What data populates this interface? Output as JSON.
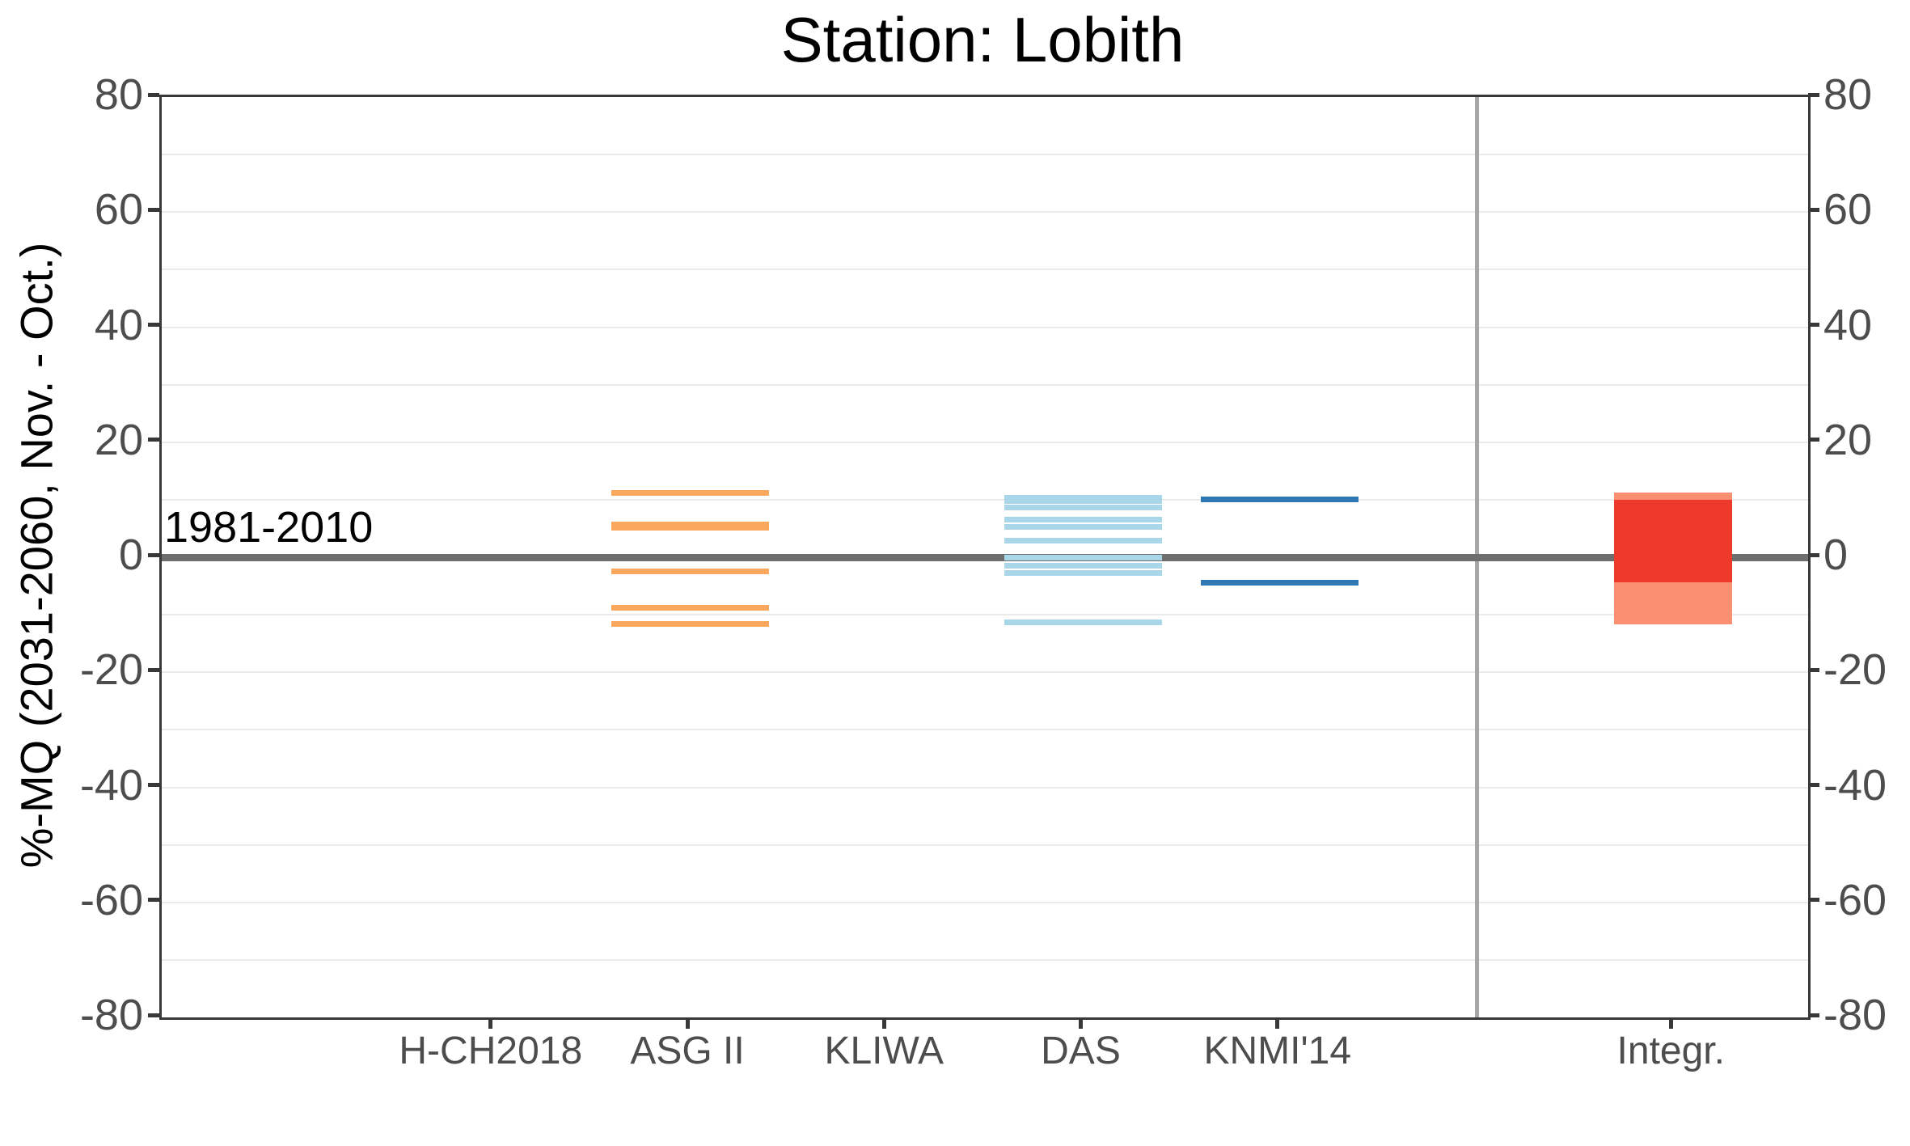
{
  "chart_data": {
    "type": "interval",
    "title": "Station: Lobith",
    "ylabel": "%-MQ (2031-2060, Nov. - Oct.)",
    "ylim": [
      -80,
      80
    ],
    "yticks": [
      80,
      60,
      40,
      20,
      0,
      -20,
      -40,
      -60,
      -80
    ],
    "grid_step": 10,
    "grid_on": true,
    "legend_position": "none",
    "baseline": {
      "value": 0,
      "label": "1981-2010",
      "color": "#6e6e6e"
    },
    "categories": [
      "H-CH2018",
      "ASG II",
      "KLIWA",
      "DAS",
      "KNMI'14",
      "Integr."
    ],
    "series": [
      {
        "name": "H-CH2018",
        "type": "lines",
        "color": "#fba75d",
        "values": []
      },
      {
        "name": "ASG II",
        "type": "lines",
        "color": "#fba75d",
        "values": [
          11.2,
          5.4,
          -2.4,
          -8.8,
          -11.6
        ],
        "thick_values": [
          5.4
        ]
      },
      {
        "name": "KLIWA",
        "type": "lines",
        "color": "#a9d6e8",
        "values": []
      },
      {
        "name": "DAS",
        "type": "lines",
        "color": "#a9d6e8",
        "values": [
          10.1,
          8.6,
          6.6,
          5.3,
          2.9,
          0.0,
          -1.5,
          -2.8,
          -11.3
        ],
        "thick_values": [
          10.1
        ]
      },
      {
        "name": "KNMI'14",
        "type": "lines",
        "color": "#2e78b6",
        "values": [
          10.1,
          -4.4
        ]
      },
      {
        "name": "Integr.",
        "type": "box",
        "outer": {
          "from": -11.7,
          "to": 11.2,
          "color": "#fa8f72"
        },
        "inner": {
          "from": -4.3,
          "to": 10.0,
          "color": "#ee3a2b"
        }
      }
    ],
    "separator_after": "KNMI'14",
    "colors": {
      "axis_frame": "#383838",
      "gridline": "#ebebeb",
      "baseline_gray": "#6e6e6e",
      "separator_gray": "#a6a6a6",
      "tick_text": "#4d4d4d",
      "orange": "#fba75d",
      "light_blue": "#a9d6e8",
      "dark_blue": "#2e78b6",
      "red": "#ee3a2b",
      "salmon": "#fa8f72"
    }
  }
}
